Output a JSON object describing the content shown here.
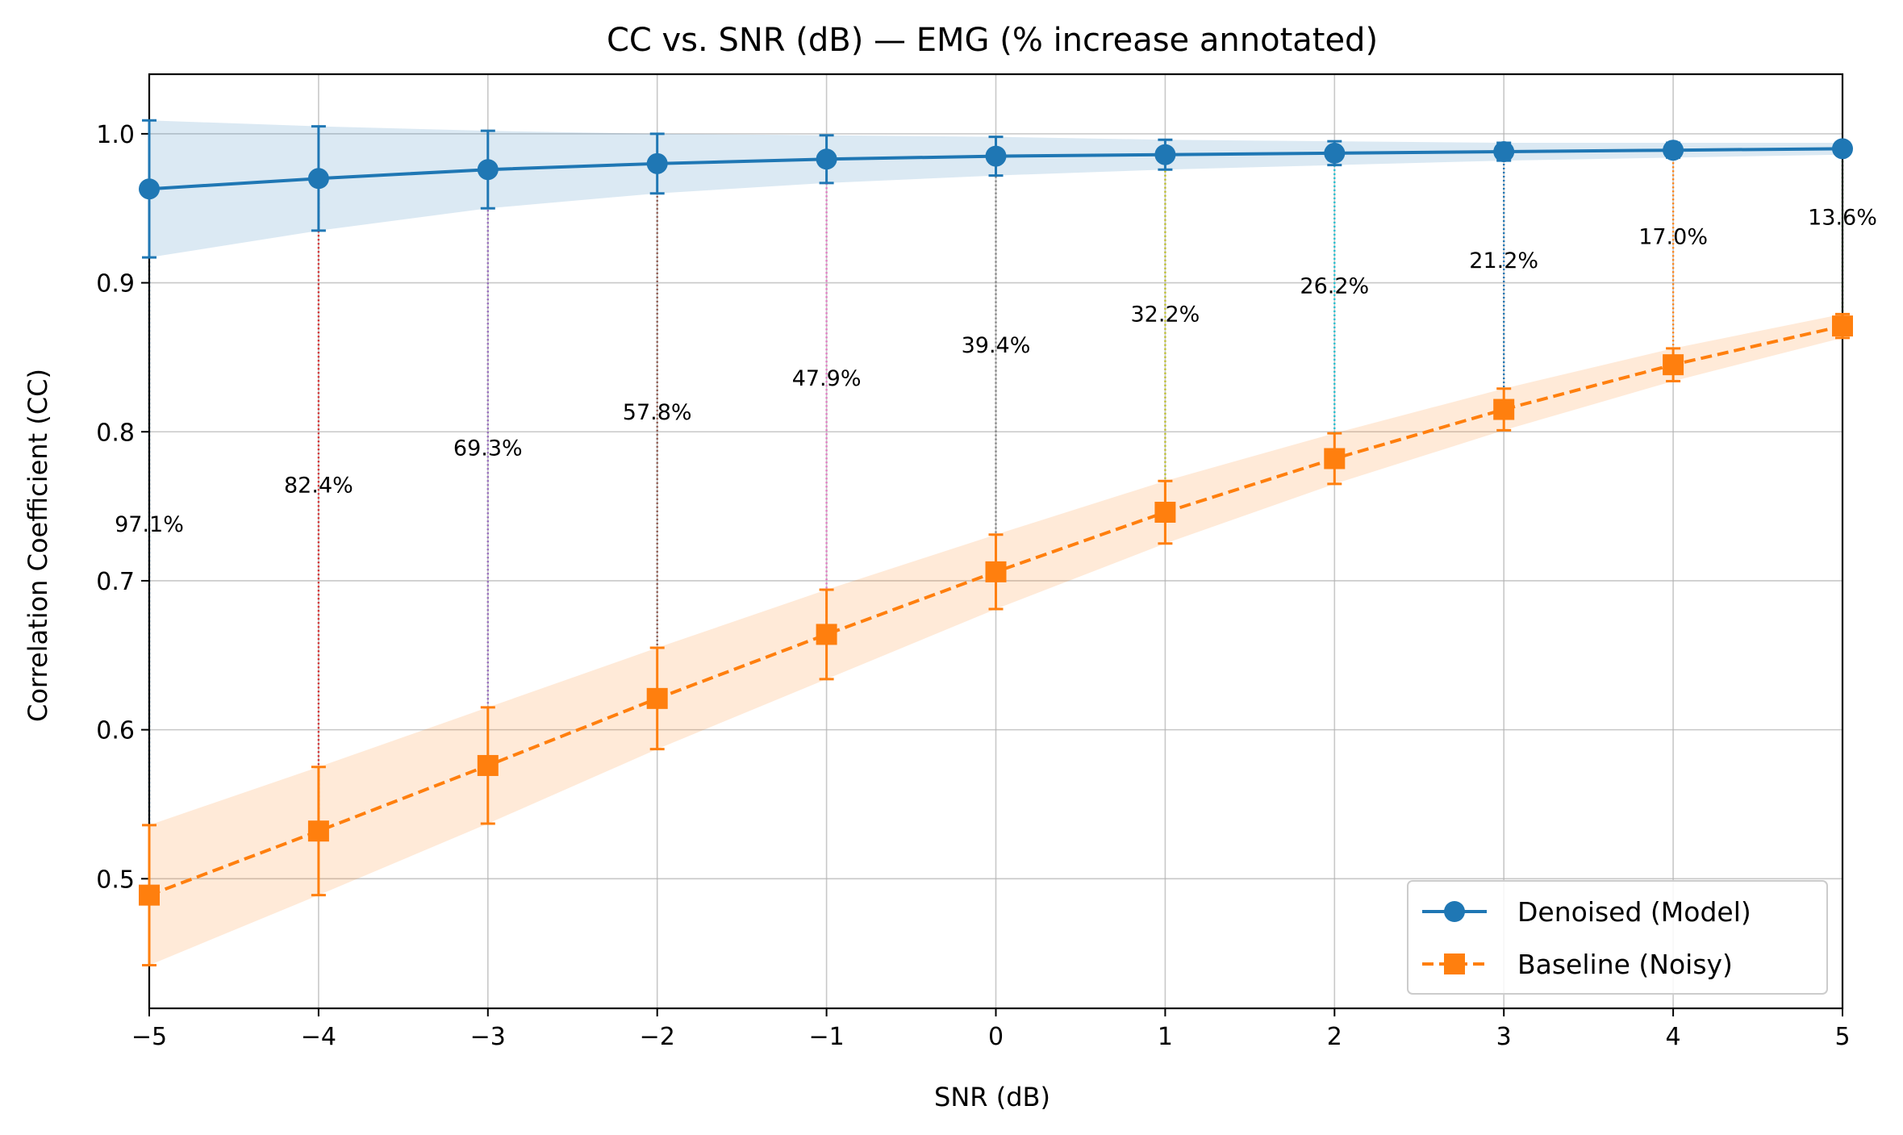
{
  "chart_data": {
    "type": "line",
    "title": "CC vs. SNR (dB) — EMG (% increase annotated)",
    "xlabel": "SNR (dB)",
    "ylabel": "Correlation Coefficient (CC)",
    "xlim": [
      -5,
      5
    ],
    "ylim": [
      0.413,
      1.04
    ],
    "x": [
      -5,
      -4,
      -3,
      -2,
      -1,
      0,
      1,
      2,
      3,
      4,
      5
    ],
    "x_tick_labels": [
      "−5",
      "−4",
      "−3",
      "−2",
      "−1",
      "0",
      "1",
      "2",
      "3",
      "4",
      "5"
    ],
    "y_ticks": [
      0.5,
      0.6,
      0.7,
      0.8,
      0.9,
      1.0
    ],
    "y_tick_labels": [
      "0.5",
      "0.6",
      "0.7",
      "0.8",
      "0.9",
      "1.0"
    ],
    "grid": true,
    "legend_position": "lower-right",
    "series": [
      {
        "name": "Denoised (Model)",
        "color": "#1f77b4",
        "marker": "circle",
        "line_style": "solid",
        "values": [
          0.963,
          0.97,
          0.976,
          0.98,
          0.983,
          0.985,
          0.986,
          0.987,
          0.988,
          0.989,
          0.99
        ],
        "error": [
          0.046,
          0.035,
          0.026,
          0.02,
          0.016,
          0.013,
          0.01,
          0.008,
          0.006,
          0.005,
          0.004
        ],
        "band_lower": [
          0.917,
          0.935,
          0.95,
          0.96,
          0.967,
          0.972,
          0.976,
          0.979,
          0.982,
          0.984,
          0.986
        ],
        "band_upper": [
          1.009,
          1.005,
          1.002,
          1.0,
          0.999,
          0.998,
          0.996,
          0.995,
          0.994,
          0.994,
          0.994
        ]
      },
      {
        "name": "Baseline (Noisy)",
        "color": "#ff7f0e",
        "marker": "square",
        "line_style": "dashed",
        "values": [
          0.489,
          0.532,
          0.576,
          0.621,
          0.664,
          0.706,
          0.746,
          0.782,
          0.815,
          0.845,
          0.871
        ],
        "error": [
          0.047,
          0.043,
          0.039,
          0.034,
          0.03,
          0.025,
          0.021,
          0.017,
          0.014,
          0.011,
          0.008
        ],
        "band_lower": [
          0.442,
          0.489,
          0.537,
          0.587,
          0.634,
          0.681,
          0.725,
          0.765,
          0.801,
          0.834,
          0.863
        ],
        "band_upper": [
          0.536,
          0.575,
          0.615,
          0.655,
          0.694,
          0.731,
          0.767,
          0.799,
          0.829,
          0.856,
          0.879
        ]
      }
    ],
    "annotations": [
      {
        "x": -5,
        "text": "97.1%",
        "color": "#1f77b4",
        "y_text": 0.738
      },
      {
        "x": -4,
        "text": "82.4%",
        "color": "#d62728",
        "y_text": 0.764
      },
      {
        "x": -3,
        "text": "69.3%",
        "color": "#9467bd",
        "y_text": 0.789
      },
      {
        "x": -2,
        "text": "57.8%",
        "color": "#8c564b",
        "y_text": 0.813
      },
      {
        "x": -1,
        "text": "47.9%",
        "color": "#e377c2",
        "y_text": 0.836
      },
      {
        "x": 0,
        "text": "39.4%",
        "color": "#7f7f7f",
        "y_text": 0.858
      },
      {
        "x": 1,
        "text": "32.2%",
        "color": "#bcbd22",
        "y_text": 0.879
      },
      {
        "x": 2,
        "text": "26.2%",
        "color": "#17becf",
        "y_text": 0.898
      },
      {
        "x": 3,
        "text": "21.2%",
        "color": "#1f77b4",
        "y_text": 0.915
      },
      {
        "x": 4,
        "text": "17.0%",
        "color": "#ff7f0e",
        "y_text": 0.931
      },
      {
        "x": 5,
        "text": "13.6%",
        "color": "#2ca02c",
        "y_text": 0.944
      }
    ]
  }
}
